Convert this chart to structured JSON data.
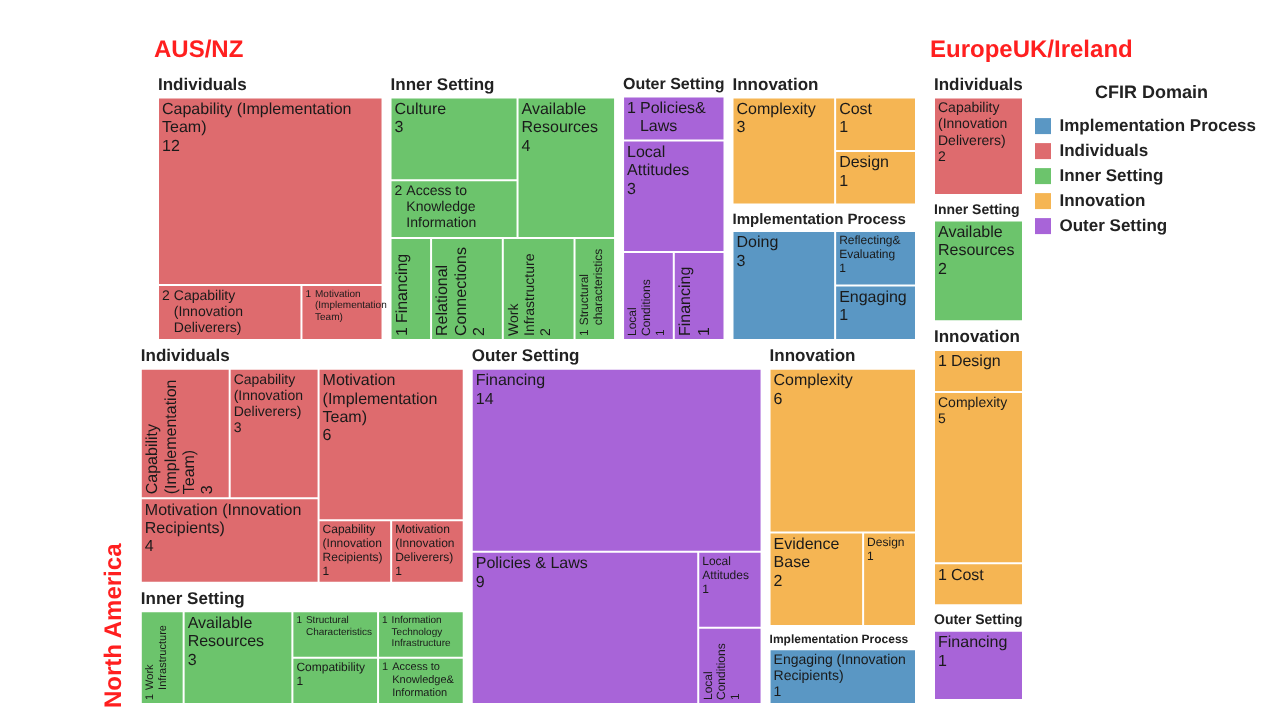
{
  "chart_data": [
    {
      "type": "other",
      "title": "AUS/NZ",
      "data_labels": true,
      "categories": [
        "Capability (Implementation Team)",
        "Capability (Innovation Deliverers)",
        "Motivation (Implementation Team)",
        "Culture",
        "Access to Knowledge Information",
        "Available Resources",
        "Financing",
        "Relational Connections",
        "Work Infrastructure",
        "Structural characteristics",
        "Policies& Laws",
        "Local Attitudes",
        "Local Conditions",
        "Financing",
        "Complexity",
        "Cost",
        "Design",
        "Doing",
        "Reflecting& Evaluating",
        "Engaging"
      ],
      "series": [
        {
          "name": "Individuals",
          "color": "#de6b6e",
          "values": [
            12,
            2,
            1,
            null,
            null,
            null,
            null,
            null,
            null,
            null,
            null,
            null,
            null,
            null,
            null,
            null,
            null,
            null,
            null,
            null
          ]
        },
        {
          "name": "Inner Setting",
          "color": "#6cc46c",
          "values": [
            null,
            null,
            null,
            3,
            2,
            4,
            1,
            2,
            2,
            1,
            null,
            null,
            null,
            null,
            null,
            null,
            null,
            null,
            null,
            null
          ]
        },
        {
          "name": "Outer Setting",
          "color": "#a864d8",
          "values": [
            null,
            null,
            null,
            null,
            null,
            null,
            null,
            null,
            null,
            null,
            1,
            3,
            1,
            1,
            null,
            null,
            null,
            null,
            null,
            null
          ]
        },
        {
          "name": "Innovation",
          "color": "#f5b553",
          "values": [
            null,
            null,
            null,
            null,
            null,
            null,
            null,
            null,
            null,
            null,
            null,
            null,
            null,
            null,
            3,
            1,
            1,
            null,
            null,
            null
          ]
        },
        {
          "name": "Implementation Process",
          "color": "#5a97c4",
          "values": [
            null,
            null,
            null,
            null,
            null,
            null,
            null,
            null,
            null,
            null,
            null,
            null,
            null,
            null,
            null,
            null,
            null,
            3,
            1,
            1
          ]
        }
      ]
    },
    {
      "type": "other",
      "title": "EuropeUK/Ireland",
      "data_labels": true,
      "legend": "right",
      "legend_title": "CFIR Domain",
      "categories": [
        "Design",
        "Complexity",
        "Cost",
        "Available Resources",
        "Financing",
        "Capability (Innovation Deliverers)"
      ],
      "series": [
        {
          "name": "Implementation Process",
          "color": "#5a97c4",
          "values": [
            null,
            null,
            null,
            null,
            null,
            null
          ]
        },
        {
          "name": "Individuals",
          "color": "#de6b6e",
          "values": [
            null,
            null,
            null,
            null,
            null,
            2
          ]
        },
        {
          "name": "Inner Setting",
          "color": "#6cc46c",
          "values": [
            null,
            null,
            null,
            2,
            null,
            null
          ]
        },
        {
          "name": "Innovation",
          "color": "#f5b553",
          "values": [
            1,
            5,
            1,
            null,
            null,
            null
          ]
        },
        {
          "name": "Outer Setting",
          "color": "#a864d8",
          "values": [
            null,
            null,
            null,
            null,
            1,
            null
          ]
        }
      ]
    },
    {
      "type": "other",
      "title": "North America",
      "data_labels": true,
      "categories": [
        "Capability (Implementation Team)",
        "Capability (Innovation Deliverers)",
        "Motivation (Innovation Recipients)",
        "Motivation (Implementation Team)",
        "Capability (Innovation Recipients)",
        "Motivation (Innovation Deliverers)",
        "Work Infrastructure",
        "Available Resources",
        "Structural Characteristics",
        "Compatibility",
        "Information Technology Infrastructure",
        "Access to Knowledge& Information",
        "Financing",
        "Policies & Laws",
        "Local Attitudes",
        "Local Conditions",
        "Complexity",
        "Evidence Base",
        "Design",
        "Engaging (Innovation Recipients)"
      ],
      "series": [
        {
          "name": "Individuals",
          "color": "#de6b6e",
          "values": [
            3,
            3,
            4,
            6,
            1,
            1,
            null,
            null,
            null,
            null,
            null,
            null,
            null,
            null,
            null,
            null,
            null,
            null,
            null,
            null
          ]
        },
        {
          "name": "Inner Setting",
          "color": "#6cc46c",
          "values": [
            null,
            null,
            null,
            null,
            null,
            null,
            1,
            3,
            1,
            1,
            1,
            1,
            null,
            null,
            null,
            null,
            null,
            null,
            null,
            null
          ]
        },
        {
          "name": "Outer Setting",
          "color": "#a864d8",
          "values": [
            null,
            null,
            null,
            null,
            null,
            null,
            null,
            null,
            null,
            null,
            null,
            null,
            14,
            9,
            1,
            1,
            null,
            null,
            null,
            null
          ]
        },
        {
          "name": "Innovation",
          "color": "#f5b553",
          "values": [
            null,
            null,
            null,
            null,
            null,
            null,
            null,
            null,
            null,
            null,
            null,
            null,
            null,
            null,
            null,
            null,
            6,
            2,
            1,
            null
          ]
        },
        {
          "name": "Implementation Process",
          "color": "#5a97c4",
          "values": [
            null,
            null,
            null,
            null,
            null,
            null,
            null,
            null,
            null,
            null,
            null,
            null,
            null,
            null,
            null,
            null,
            null,
            null,
            null,
            1
          ]
        }
      ]
    }
  ]
}
